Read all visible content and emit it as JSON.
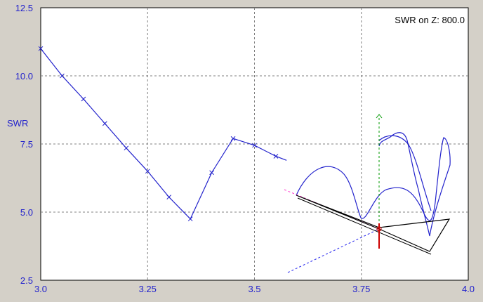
{
  "chart_data": {
    "type": "line",
    "ylabel": "SWR",
    "annotation": "SWR on Z: 800.0",
    "xlim": [
      3.0,
      4.0
    ],
    "ylim": [
      2.5,
      12.5
    ],
    "x_ticks": [
      "3.0",
      "3.25",
      "3.5",
      "3.75",
      "4.0"
    ],
    "y_ticks": [
      "2.5",
      "5.0",
      "7.5",
      "10.0",
      "12.5"
    ],
    "grid": true,
    "series": [
      {
        "x": [
          3.0,
          3.05,
          3.1,
          3.15,
          3.2,
          3.25,
          3.3,
          3.35,
          3.4,
          3.45,
          3.5,
          3.55,
          3.575
        ],
        "y": [
          11.0,
          10.0,
          9.15,
          8.25,
          7.35,
          6.5,
          5.55,
          4.75,
          6.45,
          7.7,
          7.45,
          7.05,
          6.9
        ]
      }
    ],
    "colors": {
      "background": "#ffffff",
      "frame": "#d4d0c8",
      "curve": "#2222cc",
      "grid": "#808080",
      "axis_x": "#ff33cc",
      "axis_y": "#009900",
      "axis_z": "#2222ee",
      "wire": "#000000",
      "feed": "#cc0000"
    }
  }
}
